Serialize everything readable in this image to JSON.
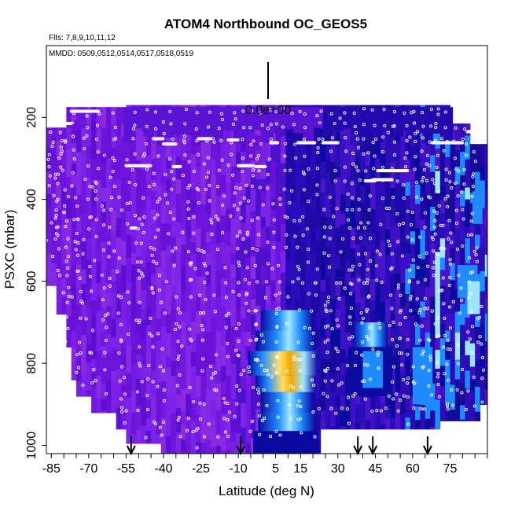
{
  "chart_data": {
    "type": "heatmap",
    "title": "ATOM4 Northbound OC_GEOS5",
    "flights_label": "Flts: 7,8,9,10,11,12",
    "dates_label": "MMDD: 0509,0512,0514,0517,0518,0519",
    "scale_label": "0.0e+00",
    "xlabel": "Latitude (deg N)",
    "ylabel": "PSXC (mbar)",
    "xlim": [
      -87,
      90
    ],
    "ylim": [
      1020,
      25
    ],
    "y_inverted": true,
    "x_ticks_labeled": [
      -85,
      -70,
      -55,
      -40,
      -25,
      -10,
      5,
      15,
      30,
      45,
      60,
      75
    ],
    "x_tick_labels": [
      "-85",
      "-70",
      "-55",
      "-40",
      "-25",
      "-10",
      "5",
      "15",
      "30",
      "45",
      "60",
      "75"
    ],
    "y_ticks": [
      200,
      400,
      600,
      800,
      1000
    ],
    "y_tick_labels": [
      "200",
      "400",
      "600",
      "800",
      "1000"
    ],
    "flight_boundary_latitudes": [
      -53,
      -9,
      38,
      44,
      66
    ],
    "colors": {
      "background_field": "#8a2be2",
      "low": "#7a1fe6",
      "mid_low": "#3d10c8",
      "mid": "#0a0aa0",
      "high": "#1e8cff",
      "higher": "#9ee6ff",
      "peak": "#ffe066",
      "max": "#f5a800",
      "points": "#ffffff"
    },
    "grid": false,
    "legend": "none"
  }
}
